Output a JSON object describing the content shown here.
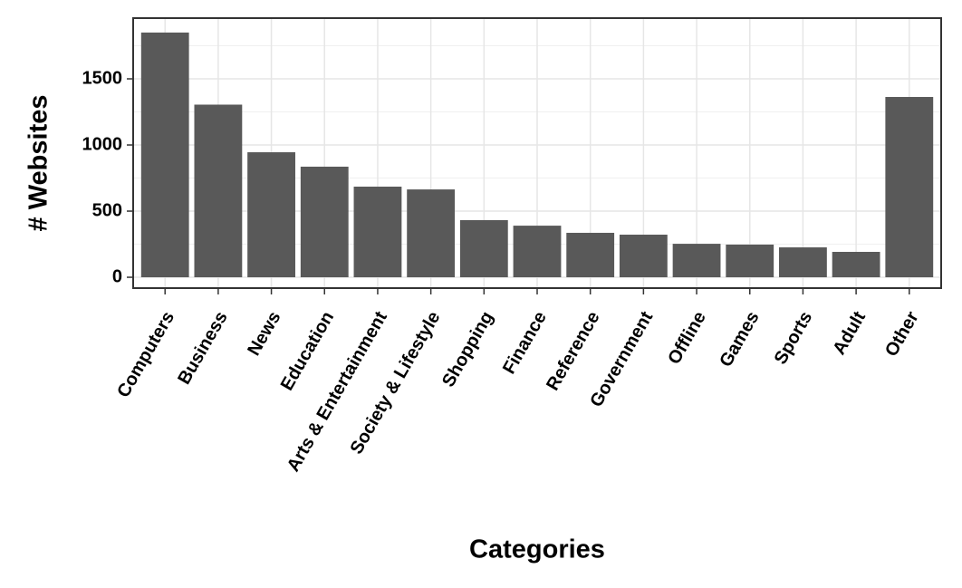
{
  "chart_data": {
    "type": "bar",
    "x_label": "Categories",
    "y_label": "# Websites",
    "categories": [
      "Computers",
      "Business",
      "News",
      "Education",
      "Arts & Entertainment",
      "Society & Lifestyle",
      "Shopping",
      "Finance",
      "Reference",
      "Government",
      "Offline",
      "Games",
      "Sports",
      "Adult",
      "Other"
    ],
    "values": [
      1850,
      1305,
      945,
      836,
      685,
      664,
      432,
      390,
      336,
      322,
      253,
      247,
      226,
      192,
      1363
    ],
    "color": "#595959",
    "ylim": [
      -82,
      1959
    ],
    "yticks": [
      0,
      500,
      1000,
      1500
    ],
    "grid": true
  }
}
